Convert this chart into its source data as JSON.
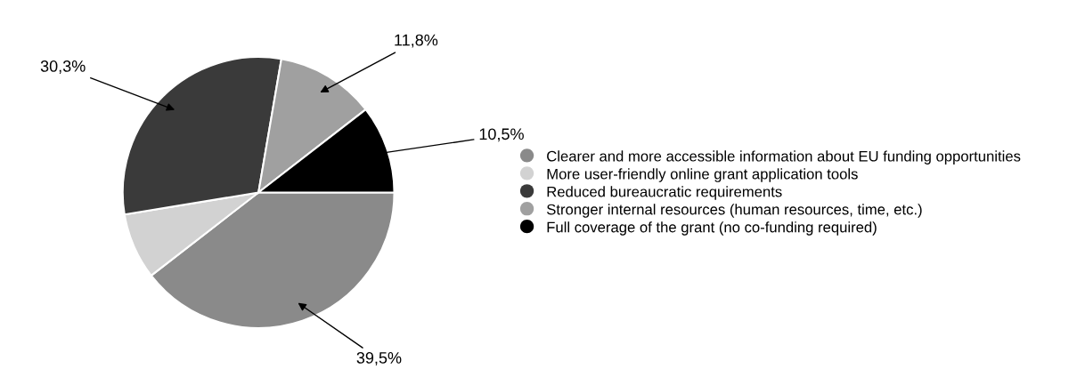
{
  "chart_data": {
    "type": "pie",
    "categories": [
      "Clearer and more accessible information about EU funding opportunities",
      "More user-friendly online grant application tools",
      "Reduced bureaucratic requirements",
      "Stronger internal resources (human resources, time, etc.)",
      "Full coverage of the grant (no co-funding required)"
    ],
    "values": [
      39.5,
      7.9,
      30.3,
      11.8,
      10.5
    ],
    "value_labels": [
      "39,5%",
      null,
      "30,3%",
      "11,8%",
      "10,5%"
    ],
    "colors": [
      "#8a8a8a",
      "#d2d2d2",
      "#3a3a3a",
      "#a0a0a0",
      "#000000"
    ],
    "legend": "right"
  }
}
